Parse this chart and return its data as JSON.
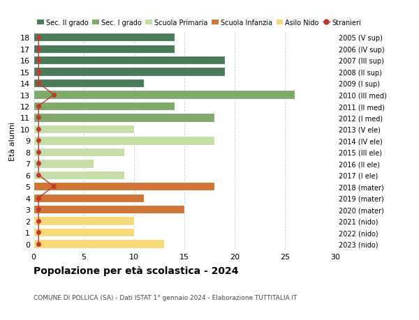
{
  "ages": [
    18,
    17,
    16,
    15,
    14,
    13,
    12,
    11,
    10,
    9,
    8,
    7,
    6,
    5,
    4,
    3,
    2,
    1,
    0
  ],
  "years": [
    "2005 (V sup)",
    "2006 (IV sup)",
    "2007 (III sup)",
    "2008 (II sup)",
    "2009 (I sup)",
    "2010 (III med)",
    "2011 (II med)",
    "2012 (I med)",
    "2013 (V ele)",
    "2014 (IV ele)",
    "2015 (III ele)",
    "2016 (II ele)",
    "2017 (I ele)",
    "2018 (mater)",
    "2019 (mater)",
    "2020 (mater)",
    "2021 (nido)",
    "2022 (nido)",
    "2023 (nido)"
  ],
  "values": [
    14,
    14,
    19,
    19,
    11,
    26,
    14,
    18,
    10,
    18,
    9,
    6,
    9,
    18,
    11,
    15,
    10,
    10,
    13
  ],
  "stranieri_x": [
    0.5,
    0.5,
    0.5,
    0.5,
    0.5,
    2.0,
    0.5,
    0.5,
    0.5,
    0.5,
    0.5,
    0.5,
    0.5,
    2.0,
    0.5,
    0.5,
    0.5,
    0.5,
    0.5
  ],
  "colors": {
    "sec2": "#4a7c59",
    "sec1": "#7faa6a",
    "primaria": "#c5dea8",
    "infanzia": "#d07535",
    "nido": "#f5d878",
    "stranieri": "#c0392b"
  },
  "bar_colors": [
    "#4a7c59",
    "#4a7c59",
    "#4a7c59",
    "#4a7c59",
    "#4a7c59",
    "#7faa6a",
    "#7faa6a",
    "#7faa6a",
    "#c5dea8",
    "#c5dea8",
    "#c5dea8",
    "#c5dea8",
    "#c5dea8",
    "#d07535",
    "#d07535",
    "#d07535",
    "#f5d878",
    "#f5d878",
    "#f5d878"
  ],
  "legend_labels": [
    "Sec. II grado",
    "Sec. I grado",
    "Scuola Primaria",
    "Scuola Infanzia",
    "Asilo Nido",
    "Stranieri"
  ],
  "legend_colors": [
    "#4a7c59",
    "#7faa6a",
    "#c5dea8",
    "#d07535",
    "#f5d878",
    "#c0392b"
  ],
  "title": "Popolazione per età scolastica - 2024",
  "subtitle": "COMUNE DI POLLICA (SA) - Dati ISTAT 1° gennaio 2024 - Elaborazione TUTTITALIA.IT",
  "ylabel_left": "Età alunni",
  "xlim": [
    0,
    30
  ],
  "xticks": [
    0,
    5,
    10,
    15,
    20,
    25,
    30
  ],
  "bg_color": "#ffffff",
  "grid_color": "#cccccc"
}
